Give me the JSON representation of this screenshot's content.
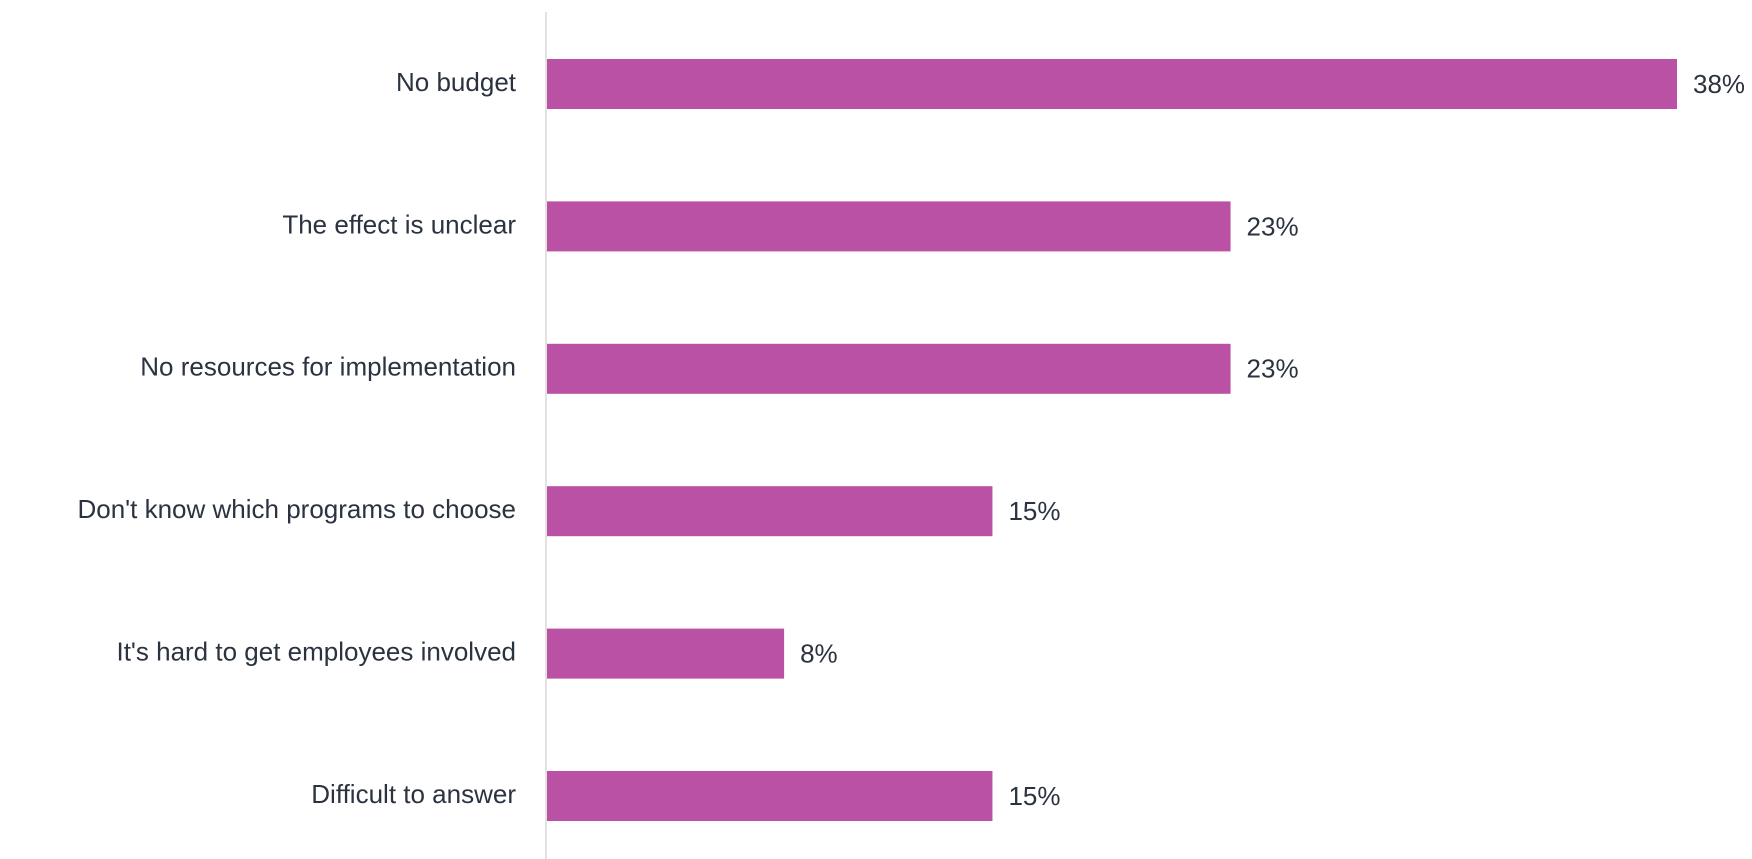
{
  "chart_data": {
    "type": "bar",
    "orientation": "horizontal",
    "categories": [
      "No budget",
      "The effect is unclear",
      "No resources for implementation",
      "Don't know which programs to choose",
      "It's hard to get employees involved",
      "Difficult to answer"
    ],
    "values": [
      38,
      23,
      23,
      15,
      8,
      15
    ],
    "value_labels": [
      "38%",
      "23%",
      "23%",
      "15%",
      "8%",
      "15%"
    ],
    "unit": "%",
    "xlim": [
      0,
      38
    ],
    "grid": false,
    "legend": "none",
    "title": "",
    "xlabel": "",
    "ylabel": ""
  },
  "colors": {
    "bar": "#bb51a4",
    "axis_line": "#d9d9d9",
    "text": "#2b3340"
  }
}
